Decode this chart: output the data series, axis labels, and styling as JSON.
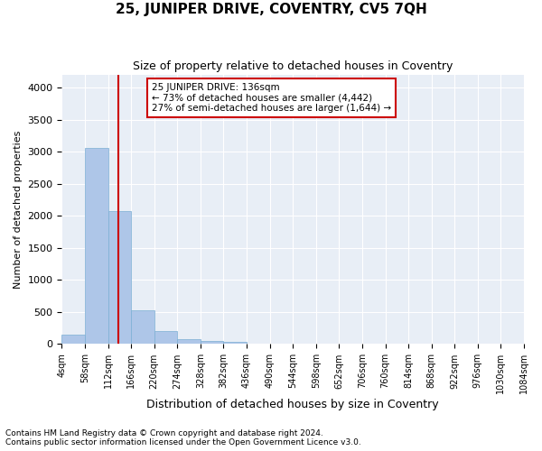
{
  "title": "25, JUNIPER DRIVE, COVENTRY, CV5 7QH",
  "subtitle": "Size of property relative to detached houses in Coventry",
  "xlabel": "Distribution of detached houses by size in Coventry",
  "ylabel": "Number of detached properties",
  "bin_edges": [
    4,
    58,
    112,
    166,
    220,
    274,
    328,
    382,
    436,
    490,
    544,
    598,
    652,
    706,
    760,
    814,
    868,
    922,
    976,
    1030,
    1084
  ],
  "bar_heights": [
    150,
    3060,
    2080,
    530,
    200,
    80,
    55,
    40,
    0,
    0,
    0,
    0,
    0,
    0,
    0,
    0,
    0,
    0,
    0,
    0
  ],
  "bar_color": "#aec6e8",
  "bar_edge_color": "#7bafd4",
  "vline_x": 136,
  "vline_color": "#cc0000",
  "annotation_line1": "25 JUNIPER DRIVE: 136sqm",
  "annotation_line2": "← 73% of detached houses are smaller (4,442)",
  "annotation_line3": "27% of semi-detached houses are larger (1,644) →",
  "annotation_box_color": "#cc0000",
  "ylim": [
    0,
    4200
  ],
  "yticks": [
    0,
    500,
    1000,
    1500,
    2000,
    2500,
    3000,
    3500,
    4000
  ],
  "background_color": "#e8eef6",
  "grid_color": "#ffffff",
  "footnote1": "Contains HM Land Registry data © Crown copyright and database right 2024.",
  "footnote2": "Contains public sector information licensed under the Open Government Licence v3.0.",
  "tick_labels": [
    "4sqm",
    "58sqm",
    "112sqm",
    "166sqm",
    "220sqm",
    "274sqm",
    "328sqm",
    "382sqm",
    "436sqm",
    "490sqm",
    "544sqm",
    "598sqm",
    "652sqm",
    "706sqm",
    "760sqm",
    "814sqm",
    "868sqm",
    "922sqm",
    "976sqm",
    "1030sqm",
    "1084sqm"
  ]
}
